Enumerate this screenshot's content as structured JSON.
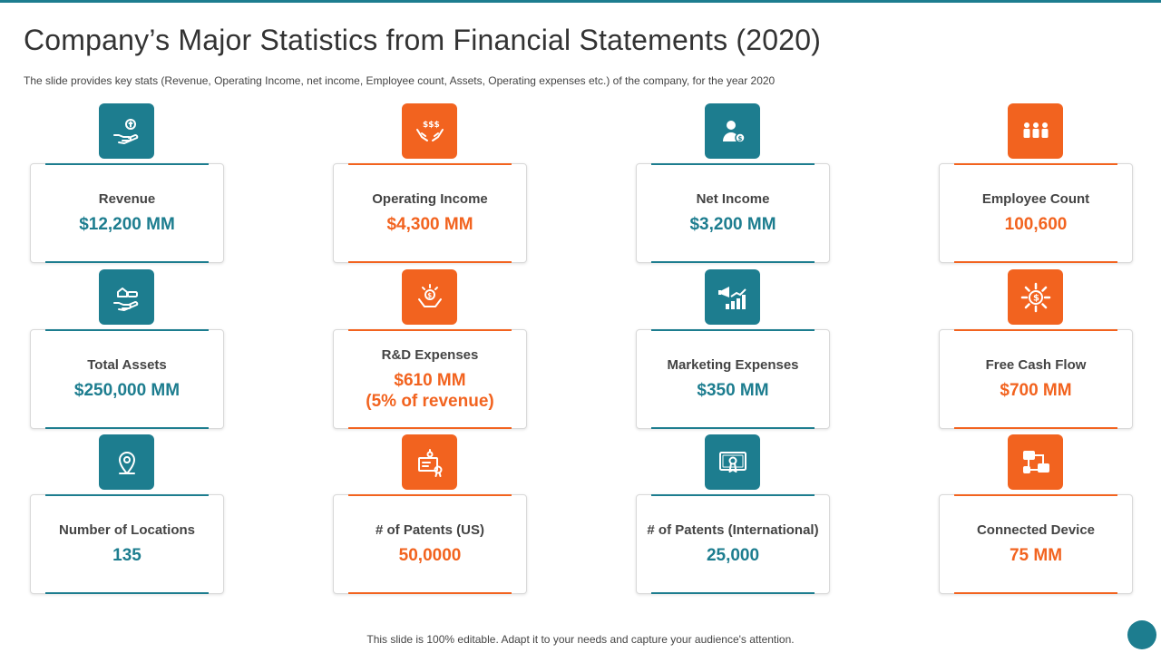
{
  "header": {
    "title": "Company’s Major Statistics from Financial Statements (2020)",
    "subtitle": "The slide provides  key stats (Revenue,  Operating Income, net income, Employee count, Assets, Operating expenses etc.) of the company, for the year 2020"
  },
  "colors": {
    "teal": "#1d7d8f",
    "orange": "#f2631f"
  },
  "stats": [
    {
      "label": "Revenue",
      "value": "$12,200 MM",
      "icon": "hand-money-icon"
    },
    {
      "label": "Operating Income",
      "value": "$4,300 MM",
      "icon": "hands-dollar-icon"
    },
    {
      "label": "Net Income",
      "value": "$3,200 MM",
      "icon": "businessman-dollar-icon"
    },
    {
      "label": "Employee Count",
      "value": "100,600",
      "icon": "people-group-icon"
    },
    {
      "label": "Total Assets",
      "value": "$250,000 MM",
      "icon": "hand-house-car-icon"
    },
    {
      "label": "R&D Expenses",
      "value": "$610 MM",
      "value_sub": "(5% of revenue)",
      "icon": "lightbulb-dollar-icon"
    },
    {
      "label": "Marketing Expenses",
      "value": "$350 MM",
      "icon": "megaphone-chart-icon"
    },
    {
      "label": "Free Cash Flow",
      "value": "$700 MM",
      "icon": "gear-dollar-icon"
    },
    {
      "label": "Number of Locations",
      "value": "135",
      "icon": "map-pin-icon"
    },
    {
      "label": "# of Patents (US)",
      "value": "50,0000",
      "icon": "patent-certificate-icon"
    },
    {
      "label": "# of Patents (International)",
      "value": "25,000",
      "icon": "certificate-icon"
    },
    {
      "label": "Connected Device",
      "value": "75 MM",
      "icon": "network-devices-icon"
    }
  ],
  "footer": {
    "text": "This slide is 100% editable. Adapt it to your needs and capture your audience's attention."
  }
}
